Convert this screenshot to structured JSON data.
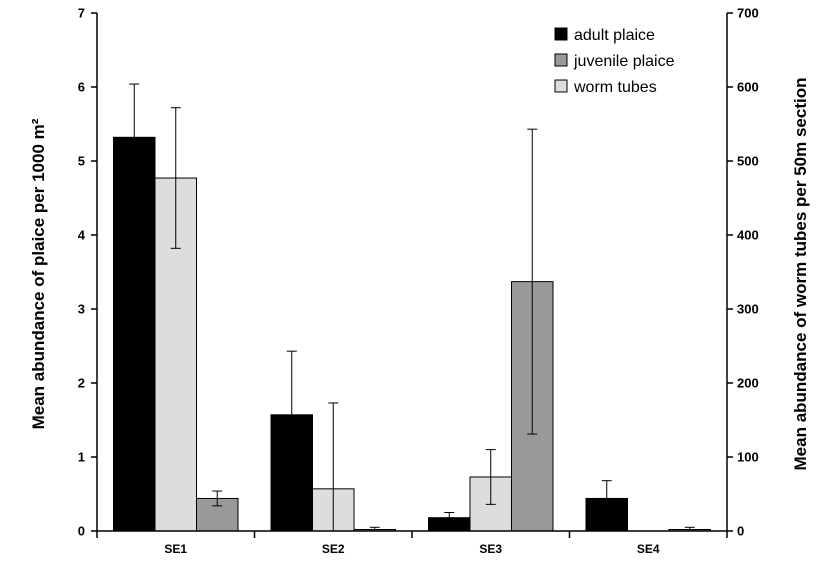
{
  "chart_data": {
    "type": "bar",
    "categories": [
      "SE1",
      "SE2",
      "SE3",
      "SE4"
    ],
    "ylabel_left": "Mean abundance of plaice per 1000 m²",
    "ylabel_right": "Mean abundance of worm tubes per 50m section",
    "ylim_left": [
      0,
      7
    ],
    "ylim_right": [
      0,
      700
    ],
    "yticks_left": [
      "0",
      "1",
      "2",
      "3",
      "4",
      "5",
      "6",
      "7"
    ],
    "yticks_right": [
      "0",
      "100",
      "200",
      "300",
      "400",
      "500",
      "600",
      "700"
    ],
    "grid": false,
    "legend_position": "top-right",
    "legend": [
      "adult plaice",
      "juvenile plaice",
      "worm tubes"
    ],
    "colors": {
      "adult plaice": "#000000",
      "juvenile plaice": "#999999",
      "worm tubes": "#dddddd"
    },
    "bars": [
      {
        "category": "SE1",
        "series": "adult plaice",
        "value": 5.32,
        "error": 0.72,
        "axis": "left"
      },
      {
        "category": "SE1",
        "series": "worm tubes",
        "value": 477,
        "error": 95,
        "axis": "right"
      },
      {
        "category": "SE1",
        "series": "juvenile plaice",
        "value": 0.44,
        "error": 0.1,
        "axis": "left"
      },
      {
        "category": "SE2",
        "series": "adult plaice",
        "value": 1.57,
        "error": 0.86,
        "axis": "left"
      },
      {
        "category": "SE2",
        "series": "worm tubes",
        "value": 57,
        "error": 116,
        "axis": "right"
      },
      {
        "category": "SE2",
        "series": "juvenile plaice",
        "value": 0.02,
        "error": 0.03,
        "axis": "left"
      },
      {
        "category": "SE3",
        "series": "adult plaice",
        "value": 0.18,
        "error": 0.07,
        "axis": "left"
      },
      {
        "category": "SE3",
        "series": "worm tubes",
        "value": 73,
        "error": 37,
        "axis": "right"
      },
      {
        "category": "SE3",
        "series": "juvenile plaice",
        "value": 3.37,
        "error": 2.06,
        "axis": "left"
      },
      {
        "category": "SE4",
        "series": "adult plaice",
        "value": 0.44,
        "error": 0.24,
        "axis": "left"
      },
      {
        "category": "SE4",
        "series": "juvenile plaice",
        "value": 0.02,
        "error": 0.03,
        "axis": "left"
      }
    ]
  }
}
